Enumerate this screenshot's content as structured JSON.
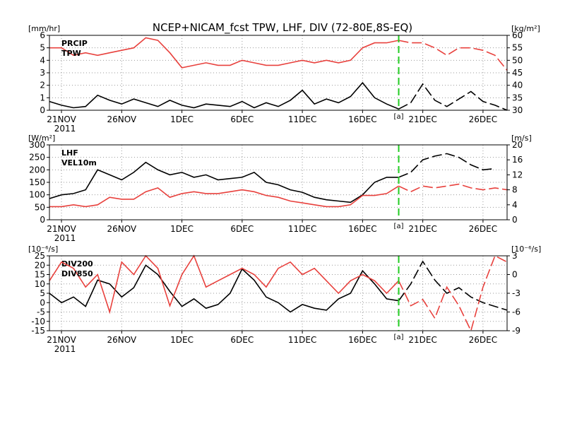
{
  "title": "NCEP+NICAM_fcst TPW, LHF, DIV (72-80E,8S-EQ)",
  "colors": {
    "black": "#000000",
    "red": "#e8413d",
    "green": "#22cc22",
    "grid": "#9a9a9a"
  },
  "date_ticks": [
    "21NOV",
    "26NOV",
    "1DEC",
    "6DEC",
    "11DEC",
    "16DEC",
    "21DEC",
    "26DEC"
  ],
  "year_label": "2011",
  "marker_label": "[a]",
  "chart_data": [
    {
      "type": "line",
      "panel": "top",
      "x_range": [
        "2011-11-20",
        "2011-12-28"
      ],
      "marker_x": "2011-12-19",
      "ylabel_left": "[mm/hr]",
      "ylabel_right": "[kg/m²]",
      "ylim_left": [
        0,
        6
      ],
      "ylim_right": [
        30,
        60
      ],
      "yticks_left": [
        "0",
        "1",
        "2",
        "3",
        "4",
        "5",
        "6"
      ],
      "yticks_right": [
        "30",
        "35",
        "40",
        "45",
        "50",
        "55",
        "60"
      ],
      "grid": true,
      "series": [
        {
          "name": "PRCIP",
          "axis": "left",
          "color": "black",
          "x": [
            "2011-11-20",
            "2011-11-21",
            "2011-11-22",
            "2011-11-23",
            "2011-11-24",
            "2011-11-25",
            "2011-11-26",
            "2011-11-27",
            "2011-11-28",
            "2011-11-29",
            "2011-11-30",
            "2011-12-01",
            "2011-12-02",
            "2011-12-03",
            "2011-12-04",
            "2011-12-05",
            "2011-12-06",
            "2011-12-07",
            "2011-12-08",
            "2011-12-09",
            "2011-12-10",
            "2011-12-11",
            "2011-12-12",
            "2011-12-13",
            "2011-12-14",
            "2011-12-15",
            "2011-12-16",
            "2011-12-17",
            "2011-12-18",
            "2011-12-19",
            "2011-12-20",
            "2011-12-21",
            "2011-12-22",
            "2011-12-23",
            "2011-12-24",
            "2011-12-25",
            "2011-12-26",
            "2011-12-27",
            "2011-12-28"
          ],
          "y": [
            0.7,
            0.4,
            0.2,
            0.3,
            1.2,
            0.8,
            0.5,
            0.9,
            0.6,
            0.3,
            0.8,
            0.4,
            0.2,
            0.5,
            0.4,
            0.3,
            0.7,
            0.2,
            0.6,
            0.3,
            0.8,
            1.6,
            0.5,
            0.9,
            0.6,
            1.1,
            2.2,
            1.0,
            0.5,
            0.1,
            0.6,
            2.1,
            0.8,
            0.3,
            0.9,
            1.5,
            0.7,
            0.4,
            0.0
          ]
        },
        {
          "name": "TPW",
          "axis": "right",
          "color": "red",
          "x": [
            "2011-11-20",
            "2011-11-21",
            "2011-11-22",
            "2011-11-23",
            "2011-11-24",
            "2011-11-25",
            "2011-11-26",
            "2011-11-27",
            "2011-11-28",
            "2011-11-29",
            "2011-11-30",
            "2011-12-01",
            "2011-12-02",
            "2011-12-03",
            "2011-12-04",
            "2011-12-05",
            "2011-12-06",
            "2011-12-07",
            "2011-12-08",
            "2011-12-09",
            "2011-12-10",
            "2011-12-11",
            "2011-12-12",
            "2011-12-13",
            "2011-12-14",
            "2011-12-15",
            "2011-12-16",
            "2011-12-17",
            "2011-12-18",
            "2011-12-19",
            "2011-12-20",
            "2011-12-21",
            "2011-12-22",
            "2011-12-23",
            "2011-12-24",
            "2011-12-25",
            "2011-12-26",
            "2011-12-27",
            "2011-12-28"
          ],
          "y": [
            55,
            55,
            52,
            53,
            52,
            53,
            54,
            55,
            59,
            58,
            53,
            47,
            48,
            49,
            48,
            48,
            50,
            49,
            48,
            48,
            49,
            50,
            49,
            50,
            49,
            50,
            55,
            57,
            57,
            58,
            57,
            57,
            55,
            52,
            55,
            55,
            54,
            52,
            46
          ]
        }
      ],
      "dashed_after_marker": true
    },
    {
      "type": "line",
      "panel": "middle",
      "x_range": [
        "2011-11-20",
        "2011-12-28"
      ],
      "marker_x": "2011-12-19",
      "ylabel_left": "[W/m²]",
      "ylabel_right": "[m/s]",
      "ylim_left": [
        0,
        300
      ],
      "ylim_right": [
        0,
        20
      ],
      "yticks_left": [
        "0",
        "50",
        "100",
        "150",
        "200",
        "250",
        "300"
      ],
      "yticks_right": [
        "0",
        "4",
        "8",
        "12",
        "16",
        "20"
      ],
      "grid": true,
      "series": [
        {
          "name": "LHF",
          "axis": "left",
          "color": "black",
          "x": [
            "2011-11-20",
            "2011-11-21",
            "2011-11-22",
            "2011-11-23",
            "2011-11-24",
            "2011-11-25",
            "2011-11-26",
            "2011-11-27",
            "2011-11-28",
            "2011-11-29",
            "2011-11-30",
            "2011-12-01",
            "2011-12-02",
            "2011-12-03",
            "2011-12-04",
            "2011-12-05",
            "2011-12-06",
            "2011-12-07",
            "2011-12-08",
            "2011-12-09",
            "2011-12-10",
            "2011-12-11",
            "2011-12-12",
            "2011-12-13",
            "2011-12-14",
            "2011-12-15",
            "2011-12-16",
            "2011-12-17",
            "2011-12-18",
            "2011-12-19",
            "2011-12-20",
            "2011-12-21",
            "2011-12-22",
            "2011-12-23",
            "2011-12-24",
            "2011-12-25",
            "2011-12-26",
            "2011-12-27"
          ],
          "y": [
            85,
            100,
            105,
            120,
            200,
            180,
            160,
            190,
            230,
            200,
            180,
            190,
            170,
            180,
            160,
            165,
            170,
            190,
            150,
            140,
            120,
            110,
            90,
            80,
            75,
            70,
            100,
            150,
            170,
            170,
            190,
            240,
            255,
            265,
            250,
            220,
            200,
            205
          ]
        },
        {
          "name": "VEL10m",
          "axis": "right",
          "color": "red",
          "x": [
            "2011-11-20",
            "2011-11-21",
            "2011-11-22",
            "2011-11-23",
            "2011-11-24",
            "2011-11-25",
            "2011-11-26",
            "2011-11-27",
            "2011-11-28",
            "2011-11-29",
            "2011-11-30",
            "2011-12-01",
            "2011-12-02",
            "2011-12-03",
            "2011-12-04",
            "2011-12-05",
            "2011-12-06",
            "2011-12-07",
            "2011-12-08",
            "2011-12-09",
            "2011-12-10",
            "2011-12-11",
            "2011-12-12",
            "2011-12-13",
            "2011-12-14",
            "2011-12-15",
            "2011-12-16",
            "2011-12-17",
            "2011-12-18",
            "2011-12-19",
            "2011-12-20",
            "2011-12-21",
            "2011-12-22",
            "2011-12-23",
            "2011-12-24",
            "2011-12-25",
            "2011-12-26",
            "2011-12-27",
            "2011-12-28"
          ],
          "y": [
            3.5,
            3.5,
            4,
            3.5,
            4,
            6,
            5.5,
            5.5,
            7.5,
            8.5,
            6,
            7,
            7.5,
            7,
            7,
            7.5,
            8,
            7.5,
            6.5,
            6,
            5,
            4.5,
            4,
            3.5,
            3.5,
            4,
            6.5,
            6.5,
            7,
            9,
            7.5,
            9,
            8.5,
            9,
            9.5,
            8.5,
            8,
            8.5,
            8
          ]
        }
      ],
      "dashed_after_marker": true
    },
    {
      "type": "line",
      "panel": "bottom",
      "x_range": [
        "2011-11-20",
        "2011-12-28"
      ],
      "marker_x": "2011-12-19",
      "ylabel_left": "[10⁻⁶/s]",
      "ylabel_right": "[10⁻⁶/s]",
      "ylim_left": [
        -15,
        25
      ],
      "ylim_right": [
        -9,
        3
      ],
      "yticks_left": [
        "-15",
        "-10",
        "-5",
        "0",
        "5",
        "10",
        "15",
        "20",
        "25"
      ],
      "yticks_right": [
        "-9",
        "-6",
        "-3",
        "0",
        "3"
      ],
      "grid": true,
      "series": [
        {
          "name": "DIV200",
          "axis": "left",
          "color": "black",
          "x": [
            "2011-11-20",
            "2011-11-21",
            "2011-11-22",
            "2011-11-23",
            "2011-11-24",
            "2011-11-25",
            "2011-11-26",
            "2011-11-27",
            "2011-11-28",
            "2011-11-29",
            "2011-11-30",
            "2011-12-01",
            "2011-12-02",
            "2011-12-03",
            "2011-12-04",
            "2011-12-05",
            "2011-12-06",
            "2011-12-07",
            "2011-12-08",
            "2011-12-09",
            "2011-12-10",
            "2011-12-11",
            "2011-12-12",
            "2011-12-13",
            "2011-12-14",
            "2011-12-15",
            "2011-12-16",
            "2011-12-17",
            "2011-12-18",
            "2011-12-19",
            "2011-12-20",
            "2011-12-21",
            "2011-12-22",
            "2011-12-23",
            "2011-12-24",
            "2011-12-25",
            "2011-12-26",
            "2011-12-27",
            "2011-12-28"
          ],
          "y": [
            5,
            0,
            3,
            -2,
            12,
            10,
            3,
            8,
            20,
            15,
            6,
            -2,
            2,
            -3,
            -1,
            5,
            18,
            12,
            3,
            0,
            -5,
            -1,
            -3,
            -4,
            2,
            5,
            17,
            10,
            2,
            1,
            10,
            22,
            12,
            5,
            8,
            3,
            0,
            -2,
            -4
          ]
        },
        {
          "name": "DIV850",
          "axis": "right",
          "color": "red",
          "x": [
            "2011-11-20",
            "2011-11-21",
            "2011-11-22",
            "2011-11-23",
            "2011-11-24",
            "2011-11-25",
            "2011-11-26",
            "2011-11-27",
            "2011-11-28",
            "2011-11-29",
            "2011-11-30",
            "2011-12-01",
            "2011-12-02",
            "2011-12-03",
            "2011-12-04",
            "2011-12-05",
            "2011-12-06",
            "2011-12-07",
            "2011-12-08",
            "2011-12-09",
            "2011-12-10",
            "2011-12-11",
            "2011-12-12",
            "2011-12-13",
            "2011-12-14",
            "2011-12-15",
            "2011-12-16",
            "2011-12-17",
            "2011-12-18",
            "2011-12-19",
            "2011-12-20",
            "2011-12-21",
            "2011-12-22",
            "2011-12-23",
            "2011-12-24",
            "2011-12-25",
            "2011-12-26",
            "2011-12-27",
            "2011-12-28"
          ],
          "y": [
            -1,
            2,
            1,
            -2,
            0,
            -6,
            2,
            0,
            3,
            1,
            -5,
            0,
            3,
            -2,
            -1,
            0,
            1,
            0,
            -2,
            1,
            2,
            0,
            1,
            -1,
            -3,
            -1,
            0,
            -1,
            -3,
            -1,
            -5,
            -4,
            -7,
            -2,
            -5,
            -9,
            -2,
            3,
            2
          ]
        }
      ],
      "dashed_after_marker": true
    }
  ]
}
